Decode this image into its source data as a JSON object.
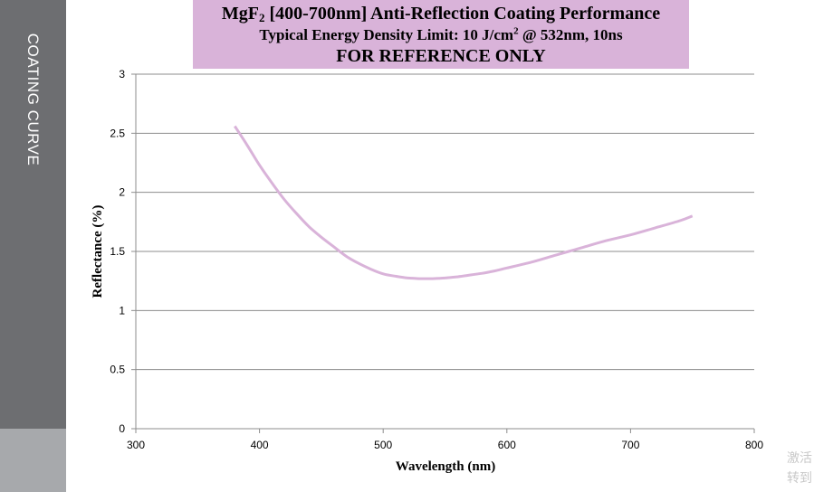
{
  "sidebar": {
    "label": "COATING CURVE"
  },
  "header": {
    "title_prefix": "MgF",
    "title_subscript": "2",
    "title_suffix": " [400-700nm] Anti-Reflection Coating Performance",
    "subtitle_prefix": "Typical Energy Density Limit: 10 J/cm",
    "subtitle_superscript": "2",
    "subtitle_suffix": " @ 532nm, 10ns",
    "notice": "FOR REFERENCE ONLY"
  },
  "colors": {
    "curve": "#d9b3d9",
    "header_bg": "#d9b3d9",
    "sidebar": "#6d6e71",
    "grid": "#8c8c8c"
  },
  "chart_data": {
    "type": "line",
    "title": "MgF2 [400-700nm] Anti-Reflection Coating Performance",
    "xlabel": "Wavelength (nm)",
    "ylabel": "Reflectance (%)",
    "xlim": [
      300,
      800
    ],
    "ylim": [
      0,
      3
    ],
    "xticks": [
      "300",
      "400",
      "500",
      "600",
      "700",
      "800"
    ],
    "yticks": [
      "0",
      "0.5",
      "1",
      "1.5",
      "2",
      "2.5",
      "3"
    ],
    "grid": "horizontal",
    "series": [
      {
        "x": [
          380,
          390,
          400,
          410,
          420,
          430,
          440,
          450,
          460,
          470,
          480,
          490,
          500,
          510,
          520,
          530,
          540,
          550,
          560,
          570,
          580,
          590,
          600,
          620,
          640,
          660,
          680,
          700,
          720,
          740,
          750
        ],
        "values": [
          2.56,
          2.4,
          2.23,
          2.08,
          1.94,
          1.82,
          1.71,
          1.62,
          1.54,
          1.46,
          1.4,
          1.35,
          1.31,
          1.29,
          1.275,
          1.27,
          1.27,
          1.275,
          1.285,
          1.3,
          1.315,
          1.335,
          1.36,
          1.41,
          1.47,
          1.53,
          1.59,
          1.64,
          1.7,
          1.76,
          1.8
        ]
      }
    ]
  },
  "watermark": {
    "line1": "激活",
    "line2": "转到"
  }
}
